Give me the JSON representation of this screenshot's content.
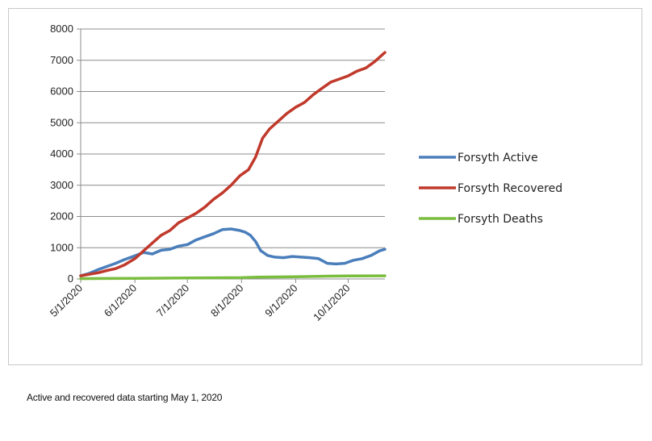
{
  "caption": "Active and recovered data starting May 1, 2020",
  "chart_data": {
    "type": "line",
    "title": "",
    "xlabel": "",
    "ylabel": "",
    "x_start": "5/1/2020",
    "x_end": "10/22/2020",
    "x_ticks": [
      "5/1/2020",
      "6/1/2020",
      "7/1/2020",
      "8/1/2020",
      "9/1/2020",
      "10/1/2020"
    ],
    "y_ticks": [
      0,
      1000,
      2000,
      3000,
      4000,
      5000,
      6000,
      7000,
      8000
    ],
    "ylim": [
      0,
      8000
    ],
    "grid": true,
    "legend_position": "right",
    "series": [
      {
        "name": "Forsyth Active",
        "color": "#4a7ebb",
        "points": [
          [
            "5/1/2020",
            100
          ],
          [
            "5/6/2020",
            180
          ],
          [
            "5/11/2020",
            300
          ],
          [
            "5/16/2020",
            400
          ],
          [
            "5/21/2020",
            500
          ],
          [
            "5/26/2020",
            620
          ],
          [
            "6/1/2020",
            740
          ],
          [
            "6/6/2020",
            850
          ],
          [
            "6/11/2020",
            800
          ],
          [
            "6/16/2020",
            920
          ],
          [
            "6/21/2020",
            950
          ],
          [
            "6/26/2020",
            1050
          ],
          [
            "7/1/2020",
            1100
          ],
          [
            "7/6/2020",
            1250
          ],
          [
            "7/11/2020",
            1350
          ],
          [
            "7/16/2020",
            1450
          ],
          [
            "7/21/2020",
            1580
          ],
          [
            "7/26/2020",
            1600
          ],
          [
            "7/31/2020",
            1550
          ],
          [
            "8/3/2020",
            1500
          ],
          [
            "8/6/2020",
            1400
          ],
          [
            "8/9/2020",
            1200
          ],
          [
            "8/12/2020",
            900
          ],
          [
            "8/16/2020",
            750
          ],
          [
            "8/20/2020",
            700
          ],
          [
            "8/25/2020",
            680
          ],
          [
            "8/30/2020",
            720
          ],
          [
            "9/4/2020",
            700
          ],
          [
            "9/9/2020",
            680
          ],
          [
            "9/14/2020",
            650
          ],
          [
            "9/19/2020",
            500
          ],
          [
            "9/24/2020",
            480
          ],
          [
            "9/29/2020",
            500
          ],
          [
            "10/4/2020",
            600
          ],
          [
            "10/9/2020",
            650
          ],
          [
            "10/14/2020",
            750
          ],
          [
            "10/19/2020",
            900
          ],
          [
            "10/22/2020",
            950
          ]
        ]
      },
      {
        "name": "Forsyth Recovered",
        "color": "#c0392b",
        "points": [
          [
            "5/1/2020",
            100
          ],
          [
            "5/6/2020",
            150
          ],
          [
            "5/11/2020",
            200
          ],
          [
            "5/16/2020",
            270
          ],
          [
            "5/21/2020",
            330
          ],
          [
            "5/26/2020",
            450
          ],
          [
            "6/1/2020",
            650
          ],
          [
            "6/6/2020",
            900
          ],
          [
            "6/11/2020",
            1150
          ],
          [
            "6/16/2020",
            1400
          ],
          [
            "6/21/2020",
            1550
          ],
          [
            "6/26/2020",
            1800
          ],
          [
            "7/1/2020",
            1950
          ],
          [
            "7/6/2020",
            2100
          ],
          [
            "7/11/2020",
            2300
          ],
          [
            "7/16/2020",
            2550
          ],
          [
            "7/21/2020",
            2750
          ],
          [
            "7/26/2020",
            3000
          ],
          [
            "7/31/2020",
            3300
          ],
          [
            "8/5/2020",
            3500
          ],
          [
            "8/9/2020",
            3900
          ],
          [
            "8/13/2020",
            4500
          ],
          [
            "8/17/2020",
            4800
          ],
          [
            "8/22/2020",
            5050
          ],
          [
            "8/27/2020",
            5300
          ],
          [
            "9/1/2020",
            5500
          ],
          [
            "9/6/2020",
            5650
          ],
          [
            "9/11/2020",
            5900
          ],
          [
            "9/16/2020",
            6100
          ],
          [
            "9/21/2020",
            6300
          ],
          [
            "9/26/2020",
            6400
          ],
          [
            "10/1/2020",
            6500
          ],
          [
            "10/6/2020",
            6650
          ],
          [
            "10/11/2020",
            6750
          ],
          [
            "10/16/2020",
            6950
          ],
          [
            "10/22/2020",
            7250
          ]
        ]
      },
      {
        "name": "Forsyth Deaths",
        "color": "#7bbd3f",
        "points": [
          [
            "5/1/2020",
            10
          ],
          [
            "5/16/2020",
            15
          ],
          [
            "6/1/2020",
            20
          ],
          [
            "7/1/2020",
            30
          ],
          [
            "8/1/2020",
            40
          ],
          [
            "8/10/2020",
            60
          ],
          [
            "9/1/2020",
            70
          ],
          [
            "9/20/2020",
            90
          ],
          [
            "10/1/2020",
            95
          ],
          [
            "10/22/2020",
            100
          ]
        ]
      }
    ]
  }
}
